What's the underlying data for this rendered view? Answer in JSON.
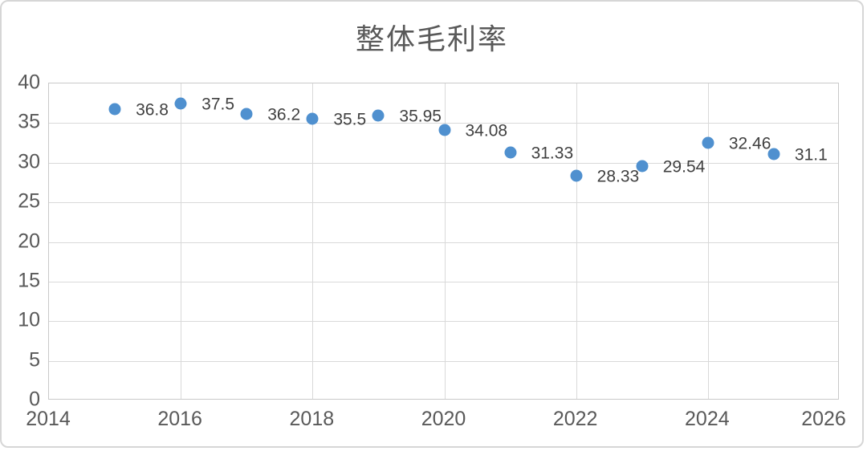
{
  "chart_data": {
    "type": "scatter",
    "title": "整体毛利率",
    "x": [
      2015,
      2016,
      2017,
      2018,
      2019,
      2020,
      2021,
      2022,
      2023,
      2024,
      2025
    ],
    "values": [
      36.8,
      37.5,
      36.2,
      35.5,
      35.95,
      34.08,
      31.33,
      28.33,
      29.54,
      32.46,
      31.1
    ],
    "point_labels": [
      "36.8",
      "37.5",
      "36.2",
      "35.5",
      "35.95",
      "34.08",
      "31.33",
      "28.33",
      "29.54",
      "32.46",
      "31.1"
    ],
    "xlabel": "",
    "ylabel": "",
    "xlim": [
      2014,
      2026
    ],
    "ylim": [
      0,
      40
    ],
    "x_ticks": [
      2014,
      2016,
      2018,
      2020,
      2022,
      2024,
      2026
    ],
    "y_ticks": [
      0,
      5,
      10,
      15,
      20,
      25,
      30,
      35,
      40
    ],
    "grid": true,
    "legend_position": "none",
    "colors": {
      "marker": "#4f90cf",
      "data_label_text": "#404040",
      "axis_text": "#595959",
      "title_text": "#595959",
      "gridline": "#d9d9d9",
      "plot_border": "#c9c9c9",
      "frame_border": "#d6d6d6",
      "background": "#ffffff"
    }
  }
}
